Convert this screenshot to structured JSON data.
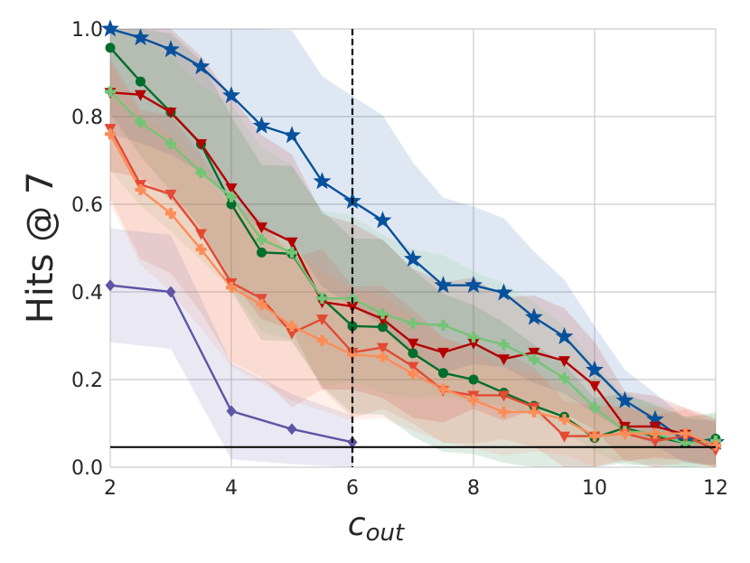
{
  "chart_data": {
    "type": "line",
    "title": "",
    "xlabel": "c",
    "xlabel_subscript": "out",
    "ylabel": "Hits @ 7",
    "xlim": [
      2,
      12
    ],
    "ylim": [
      0.0,
      1.0
    ],
    "xticks": [
      2,
      4,
      6,
      8,
      10,
      12
    ],
    "yticks": [
      0.0,
      0.2,
      0.4,
      0.6,
      0.8,
      1.0
    ],
    "xtick_labels": [
      "2",
      "4",
      "6",
      "8",
      "10",
      "12"
    ],
    "ytick_labels": [
      "0.0",
      "0.2",
      "0.4",
      "0.6",
      "0.8",
      "1.0"
    ],
    "grid": true,
    "vline_x": 6,
    "hline_y": 0.046,
    "series": [
      {
        "name": "blue-star",
        "color": "#08519c",
        "marker": "star",
        "x": [
          2,
          2.5,
          3,
          3.5,
          4,
          4.5,
          5,
          5.5,
          6,
          6.5,
          7,
          7.5,
          8,
          8.5,
          9,
          9.5,
          10,
          10.5,
          11,
          11.5,
          12
        ],
        "y": [
          1.0,
          0.98,
          0.953,
          0.914,
          0.848,
          0.779,
          0.757,
          0.652,
          0.607,
          0.563,
          0.475,
          0.415,
          0.415,
          0.398,
          0.342,
          0.298,
          0.222,
          0.152,
          0.109,
          0.06,
          0.057
        ],
        "band": [
          0.24,
          0.24,
          0.24,
          0.24,
          0.24,
          0.24,
          0.24,
          0.24,
          0.24,
          0.24,
          0.22,
          0.2,
          0.18,
          0.17,
          0.15,
          0.13,
          0.1,
          0.07,
          0.06,
          0.05,
          0.05
        ]
      },
      {
        "name": "dark-green-circle",
        "color": "#006d2c",
        "marker": "circle",
        "x": [
          2,
          2.5,
          3,
          3.5,
          4,
          4.5,
          5,
          5.5,
          6,
          6.5,
          7,
          7.5,
          8,
          8.5,
          9,
          9.5,
          10,
          10.5,
          11,
          11.5,
          12
        ],
        "y": [
          0.957,
          0.88,
          0.81,
          0.737,
          0.6,
          0.49,
          0.487,
          0.385,
          0.322,
          0.32,
          0.26,
          0.215,
          0.2,
          0.17,
          0.14,
          0.115,
          0.067,
          0.09,
          0.07,
          0.055,
          0.065
        ],
        "band": [
          0.15,
          0.17,
          0.18,
          0.19,
          0.2,
          0.2,
          0.2,
          0.2,
          0.2,
          0.2,
          0.19,
          0.18,
          0.17,
          0.16,
          0.14,
          0.12,
          0.09,
          0.08,
          0.07,
          0.06,
          0.06
        ]
      },
      {
        "name": "dark-red-triangle",
        "color": "#b30000",
        "marker": "triangle-down",
        "x": [
          2,
          2.5,
          3,
          3.5,
          4,
          4.5,
          5,
          5.5,
          6,
          6.5,
          7,
          7.5,
          8,
          8.5,
          9,
          9.5,
          10,
          10.5,
          11,
          11.5,
          12
        ],
        "y": [
          0.855,
          0.85,
          0.81,
          0.738,
          0.637,
          0.548,
          0.514,
          0.377,
          0.367,
          0.338,
          0.283,
          0.262,
          0.283,
          0.247,
          0.262,
          0.243,
          0.186,
          0.093,
          0.093,
          0.075,
          0.05
        ],
        "band": [
          0.18,
          0.19,
          0.2,
          0.2,
          0.21,
          0.21,
          0.2,
          0.2,
          0.19,
          0.18,
          0.17,
          0.16,
          0.15,
          0.14,
          0.13,
          0.12,
          0.1,
          0.08,
          0.07,
          0.06,
          0.06
        ]
      },
      {
        "name": "light-green-plus",
        "color": "#74c476",
        "marker": "plus",
        "x": [
          2,
          2.5,
          3,
          3.5,
          4,
          4.5,
          5,
          5.5,
          6,
          6.5,
          7,
          7.5,
          8,
          8.5,
          9,
          9.5,
          10,
          10.5,
          11,
          11.5,
          12
        ],
        "y": [
          0.857,
          0.787,
          0.738,
          0.672,
          0.617,
          0.519,
          0.49,
          0.385,
          0.385,
          0.35,
          0.328,
          0.324,
          0.297,
          0.28,
          0.246,
          0.203,
          0.136,
          0.082,
          0.077,
          0.055,
          0.06
        ],
        "band": [
          0.18,
          0.19,
          0.2,
          0.2,
          0.21,
          0.21,
          0.2,
          0.2,
          0.19,
          0.18,
          0.17,
          0.16,
          0.15,
          0.14,
          0.13,
          0.12,
          0.1,
          0.08,
          0.07,
          0.06,
          0.06
        ]
      },
      {
        "name": "red-triangle",
        "color": "#e34a33",
        "marker": "triangle-down",
        "x": [
          2,
          2.5,
          3,
          3.5,
          4,
          4.5,
          5,
          5.5,
          6,
          6.5,
          7,
          7.5,
          8,
          8.5,
          9,
          9.5,
          10,
          10.5,
          11,
          11.5,
          12
        ],
        "y": [
          0.773,
          0.645,
          0.623,
          0.533,
          0.421,
          0.385,
          0.306,
          0.338,
          0.262,
          0.273,
          0.23,
          0.175,
          0.164,
          0.164,
          0.137,
          0.071,
          0.071,
          0.077,
          0.06,
          0.071,
          0.04
        ],
        "band": [
          0.16,
          0.17,
          0.18,
          0.18,
          0.18,
          0.18,
          0.17,
          0.16,
          0.15,
          0.14,
          0.13,
          0.12,
          0.11,
          0.1,
          0.09,
          0.08,
          0.07,
          0.06,
          0.06,
          0.06,
          0.06
        ]
      },
      {
        "name": "orange-plus",
        "color": "#fc8d59",
        "marker": "plus",
        "x": [
          2,
          2.5,
          3,
          3.5,
          4,
          4.5,
          5,
          5.5,
          6,
          6.5,
          7,
          7.5,
          8,
          8.5,
          9,
          9.5,
          10,
          10.5,
          11,
          11.5,
          12
        ],
        "y": [
          0.76,
          0.633,
          0.579,
          0.497,
          0.41,
          0.371,
          0.322,
          0.289,
          0.257,
          0.252,
          0.213,
          0.178,
          0.153,
          0.126,
          0.126,
          0.109,
          0.071,
          0.077,
          0.077,
          0.077,
          0.05
        ],
        "band": [
          0.16,
          0.17,
          0.18,
          0.18,
          0.18,
          0.18,
          0.17,
          0.16,
          0.15,
          0.14,
          0.13,
          0.12,
          0.11,
          0.1,
          0.09,
          0.08,
          0.07,
          0.06,
          0.06,
          0.06,
          0.06
        ]
      },
      {
        "name": "purple-diamond",
        "color": "#5e55a5",
        "marker": "diamond",
        "x": [
          2,
          3,
          4,
          5,
          6
        ],
        "y": [
          0.415,
          0.4,
          0.128,
          0.087,
          0.057
        ],
        "band": [
          0.13,
          0.13,
          0.11,
          0.08,
          0.06
        ]
      }
    ]
  }
}
